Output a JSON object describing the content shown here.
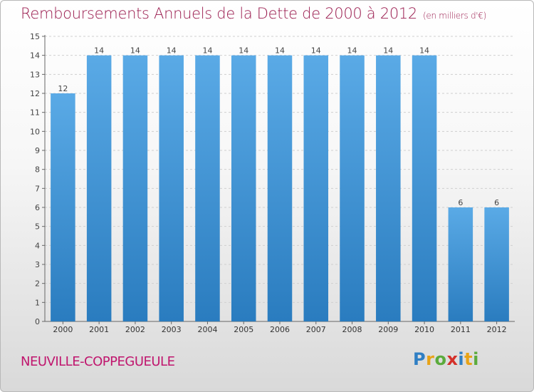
{
  "header": {
    "title": "Remboursements Annuels de la Dette de 2000 à 2012",
    "subtitle": "(en milliers d'€)"
  },
  "footer": {
    "commune": "NEUVILLE-COPPEGUEULE",
    "logo": "Proxiti"
  },
  "colors": {
    "bar_top": "#5aaae6",
    "bar_bottom": "#2a7cbf",
    "title": "#9a1b4e",
    "grid": "#cfcfcf"
  },
  "chart_data": {
    "type": "bar",
    "title": "Remboursements Annuels de la Dette de 2000 à 2012",
    "subtitle": "(en milliers d'€)",
    "xlabel": "",
    "ylabel": "",
    "categories": [
      "2000",
      "2001",
      "2002",
      "2003",
      "2004",
      "2005",
      "2006",
      "2007",
      "2008",
      "2009",
      "2010",
      "2011",
      "2012"
    ],
    "values": [
      12,
      14,
      14,
      14,
      14,
      14,
      14,
      14,
      14,
      14,
      14,
      6,
      6
    ],
    "ylim": [
      0,
      15
    ],
    "yticks": [
      0,
      1,
      2,
      3,
      4,
      5,
      6,
      7,
      8,
      9,
      10,
      11,
      12,
      13,
      14,
      15
    ],
    "grid": true,
    "data_labels": true
  }
}
